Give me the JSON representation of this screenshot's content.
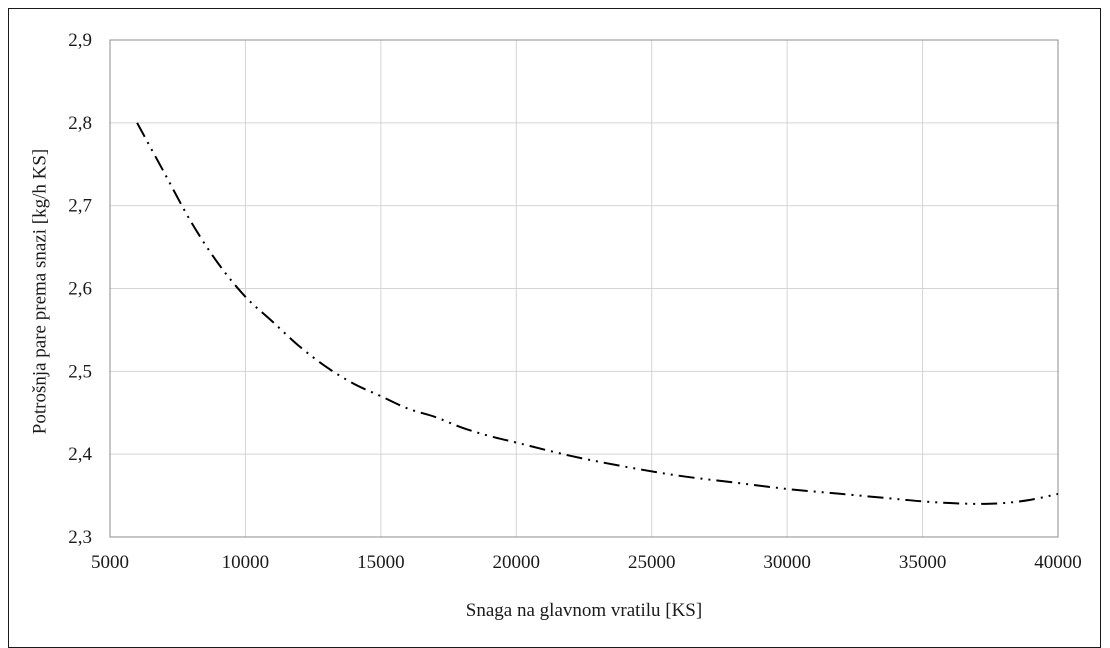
{
  "chart_data": {
    "type": "line",
    "title": "",
    "xlabel": "Snaga na glavnom vratilu [KS]",
    "ylabel": "Potrošnja pare prema snazi [kg/h KS]",
    "xlim": [
      5000,
      40000
    ],
    "ylim": [
      2.3,
      2.9
    ],
    "xticks": [
      5000,
      10000,
      15000,
      20000,
      25000,
      30000,
      35000,
      40000
    ],
    "xtick_labels": [
      "5000",
      "10000",
      "15000",
      "20000",
      "25000",
      "30000",
      "35000",
      "40000"
    ],
    "yticks": [
      2.3,
      2.4,
      2.5,
      2.6,
      2.7,
      2.8,
      2.9
    ],
    "ytick_labels": [
      "2,3",
      "2,4",
      "2,5",
      "2,6",
      "2,7",
      "2,8",
      "2,9"
    ],
    "grid": true,
    "legend": "none",
    "line_style": "dash-dot-dot",
    "line_color": "#000000",
    "series": [
      {
        "x": [
          6000,
          7000,
          8000,
          9000,
          10000,
          11000,
          12000,
          13000,
          14000,
          15000,
          16000,
          17000,
          18000,
          19000,
          20000,
          22000,
          24000,
          26000,
          28000,
          30000,
          32000,
          34000,
          35000,
          36000,
          37000,
          38000,
          39000,
          40000
        ],
        "y": [
          2.8,
          2.74,
          2.68,
          2.63,
          2.59,
          2.56,
          2.53,
          2.505,
          2.485,
          2.47,
          2.455,
          2.445,
          2.432,
          2.422,
          2.414,
          2.398,
          2.385,
          2.374,
          2.366,
          2.358,
          2.352,
          2.346,
          2.343,
          2.341,
          2.34,
          2.341,
          2.345,
          2.352
        ]
      }
    ]
  }
}
